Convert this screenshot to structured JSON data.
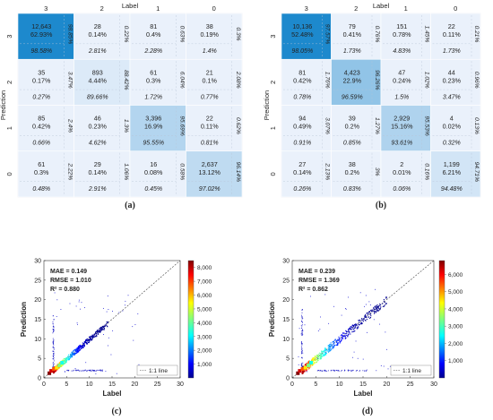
{
  "figure": {
    "confusion_matrices": [
      {
        "panel_label": "(a)",
        "x_axis_title": "Label",
        "y_axis_title": "Prediction",
        "x_tick_labels": [
          "3",
          "2",
          "1",
          "0"
        ],
        "y_tick_labels": [
          "3",
          "2",
          "1",
          "0"
        ],
        "cells": [
          [
            {
              "count": "12,643",
              "pct_total": "62.93%",
              "row_pct": "98.85%",
              "col_pct": "98.58%"
            },
            {
              "count": "28",
              "pct_total": "0.14%",
              "row_pct": "0.22%",
              "col_pct": "2.81%"
            },
            {
              "count": "81",
              "pct_total": "0.4%",
              "row_pct": "0.63%",
              "col_pct": "2.28%"
            },
            {
              "count": "38",
              "pct_total": "0.19%",
              "row_pct": "0.3%",
              "col_pct": "1.4%"
            }
          ],
          [
            {
              "count": "35",
              "pct_total": "0.17%",
              "row_pct": "3.47%",
              "col_pct": "0.27%"
            },
            {
              "count": "893",
              "pct_total": "4.44%",
              "row_pct": "88.42%",
              "col_pct": "89.66%"
            },
            {
              "count": "61",
              "pct_total": "0.3%",
              "row_pct": "6.04%",
              "col_pct": "1.72%"
            },
            {
              "count": "21",
              "pct_total": "0.1%",
              "row_pct": "2.08%",
              "col_pct": "0.77%"
            }
          ],
          [
            {
              "count": "85",
              "pct_total": "0.42%",
              "row_pct": "2.4%",
              "col_pct": "0.66%"
            },
            {
              "count": "46",
              "pct_total": "0.23%",
              "row_pct": "1.3%",
              "col_pct": "4.62%"
            },
            {
              "count": "3,396",
              "pct_total": "16.9%",
              "row_pct": "95.69%",
              "col_pct": "95.55%"
            },
            {
              "count": "22",
              "pct_total": "0.11%",
              "row_pct": "0.62%",
              "col_pct": "0.81%"
            }
          ],
          [
            {
              "count": "61",
              "pct_total": "0.3%",
              "row_pct": "2.22%",
              "col_pct": "0.48%"
            },
            {
              "count": "29",
              "pct_total": "0.14%",
              "row_pct": "1.06%",
              "col_pct": "2.91%"
            },
            {
              "count": "16",
              "pct_total": "0.08%",
              "row_pct": "0.58%",
              "col_pct": "0.45%"
            },
            {
              "count": "2,637",
              "pct_total": "13.12%",
              "row_pct": "96.14%",
              "col_pct": "97.02%"
            }
          ]
        ]
      },
      {
        "panel_label": "(b)",
        "x_axis_title": "Label",
        "y_axis_title": "Prediction",
        "x_tick_labels": [
          "3",
          "2",
          "1",
          "0"
        ],
        "y_tick_labels": [
          "3",
          "2",
          "1",
          "0"
        ],
        "cells": [
          [
            {
              "count": "10,136",
              "pct_total": "52.48%",
              "row_pct": "97.57%",
              "col_pct": "98.05%"
            },
            {
              "count": "79",
              "pct_total": "0.41%",
              "row_pct": "0.76%",
              "col_pct": "1.73%"
            },
            {
              "count": "151",
              "pct_total": "0.78%",
              "row_pct": "1.45%",
              "col_pct": "4.83%"
            },
            {
              "count": "22",
              "pct_total": "0.11%",
              "row_pct": "0.21%",
              "col_pct": "1.73%"
            }
          ],
          [
            {
              "count": "81",
              "pct_total": "0.42%",
              "row_pct": "1.76%",
              "col_pct": "0.78%"
            },
            {
              "count": "4,423",
              "pct_total": "22.9%",
              "row_pct": "96.26%",
              "col_pct": "96.59%"
            },
            {
              "count": "47",
              "pct_total": "0.24%",
              "row_pct": "1.02%",
              "col_pct": "1.5%"
            },
            {
              "count": "44",
              "pct_total": "0.23%",
              "row_pct": "0.96%",
              "col_pct": "3.47%"
            }
          ],
          [
            {
              "count": "94",
              "pct_total": "0.49%",
              "row_pct": "3.07%",
              "col_pct": "0.91%"
            },
            {
              "count": "39",
              "pct_total": "0.2%",
              "row_pct": "1.27%",
              "col_pct": "0.85%"
            },
            {
              "count": "2,929",
              "pct_total": "15.16%",
              "row_pct": "95.53%",
              "col_pct": "93.61%"
            },
            {
              "count": "4",
              "pct_total": "0.02%",
              "row_pct": "0.13%",
              "col_pct": "0.32%"
            }
          ],
          [
            {
              "count": "27",
              "pct_total": "0.14%",
              "row_pct": "2.13%",
              "col_pct": "0.26%"
            },
            {
              "count": "38",
              "pct_total": "0.2%",
              "row_pct": "3%",
              "col_pct": "0.83%"
            },
            {
              "count": "2",
              "pct_total": "0.01%",
              "row_pct": "0.16%",
              "col_pct": "0.06%"
            },
            {
              "count": "1,199",
              "pct_total": "6.21%",
              "row_pct": "94.71%",
              "col_pct": "94.48%"
            }
          ]
        ]
      }
    ],
    "scatter_plots": [
      {
        "panel_label": "(c)",
        "x_axis_title": "Label",
        "y_axis_title": "Prediction",
        "x_ticks": [
          "0",
          "5",
          "10",
          "15",
          "20",
          "25",
          "30"
        ],
        "y_ticks": [
          "0",
          "5",
          "10",
          "15",
          "20",
          "25",
          "30"
        ],
        "stats": [
          "MAE = 0.149",
          "RMSE = 1.010",
          "R² = 0.880"
        ],
        "legend": "1:1 line",
        "colorbar_ticks": [
          "8,000",
          "7,000",
          "6,000",
          "5,000",
          "4,000",
          "3,000",
          "2,000",
          "1,000"
        ]
      },
      {
        "panel_label": "(d)",
        "x_axis_title": "Label",
        "y_axis_title": "Prediction",
        "x_ticks": [
          "0",
          "5",
          "10",
          "15",
          "20",
          "25",
          "30"
        ],
        "y_ticks": [
          "0",
          "5",
          "10",
          "15",
          "20",
          "25",
          "30"
        ],
        "stats": [
          "MAE = 0.239",
          "RMSE = 1.369",
          "R² = 0.862"
        ],
        "legend": "1:1 line",
        "colorbar_ticks": [
          "6,000",
          "5,000",
          "4,000",
          "3,000",
          "2,000",
          "1,000"
        ]
      }
    ]
  },
  "chart_data": [
    {
      "type": "heatmap",
      "title": "(a)",
      "xlabel": "Label",
      "ylabel": "Prediction",
      "x_categories": [
        "3",
        "2",
        "1",
        "0"
      ],
      "y_categories": [
        "3",
        "2",
        "1",
        "0"
      ],
      "values": [
        [
          12643,
          28,
          81,
          38
        ],
        [
          35,
          893,
          61,
          21
        ],
        [
          85,
          46,
          3396,
          22
        ],
        [
          61,
          29,
          16,
          2637
        ]
      ]
    },
    {
      "type": "heatmap",
      "title": "(b)",
      "xlabel": "Label",
      "ylabel": "Prediction",
      "x_categories": [
        "3",
        "2",
        "1",
        "0"
      ],
      "y_categories": [
        "3",
        "2",
        "1",
        "0"
      ],
      "values": [
        [
          10136,
          79,
          151,
          22
        ],
        [
          81,
          4423,
          47,
          44
        ],
        [
          94,
          39,
          2929,
          4
        ],
        [
          27,
          38,
          2,
          1199
        ]
      ]
    },
    {
      "type": "scatter",
      "title": "(c)",
      "xlabel": "Label",
      "ylabel": "Prediction",
      "xlim": [
        0,
        30
      ],
      "ylim": [
        0,
        30
      ],
      "colorbar_range": [
        0,
        8500
      ],
      "reference_line": {
        "name": "1:1 line",
        "x": [
          0,
          30
        ],
        "y": [
          0,
          30
        ]
      },
      "main_cluster": {
        "x_range": [
          2,
          14
        ],
        "y_range": [
          2,
          14
        ]
      },
      "vertical_outlier_band": {
        "x": 2,
        "y_range": [
          2,
          16
        ]
      },
      "horizontal_outlier_band": {
        "y": 2,
        "x_range": [
          5,
          13
        ]
      }
    },
    {
      "type": "scatter",
      "title": "(d)",
      "xlabel": "Label",
      "ylabel": "Prediction",
      "xlim": [
        0,
        30
      ],
      "ylim": [
        0,
        30
      ],
      "colorbar_range": [
        0,
        6800
      ],
      "reference_line": {
        "name": "1:1 line",
        "x": [
          0,
          30
        ],
        "y": [
          0,
          30
        ]
      },
      "main_cluster": {
        "x_range": [
          2,
          20
        ],
        "y_range": [
          2,
          20
        ]
      },
      "vertical_outlier_band": {
        "x": 2,
        "y_range": [
          2,
          18
        ]
      },
      "horizontal_outlier_band": {
        "y": 2,
        "x_range": [
          5,
          16
        ]
      }
    }
  ]
}
